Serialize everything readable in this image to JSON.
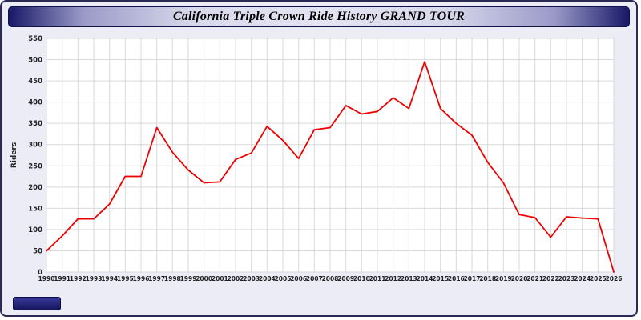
{
  "header": {
    "title": "California Triple Crown Ride History GRAND TOUR"
  },
  "chart_data": {
    "type": "line",
    "title": "California Triple Crown Ride History GRAND TOUR",
    "xlabel": "",
    "ylabel": "Riders",
    "ylim": [
      0,
      550
    ],
    "y_tick_step": 50,
    "grid": true,
    "legend_position": "none",
    "line_color": "#ee0000",
    "categories": [
      1990,
      1991,
      1992,
      1993,
      1994,
      1995,
      1996,
      1997,
      1998,
      1999,
      2000,
      2001,
      2002,
      2003,
      2004,
      2005,
      2006,
      2007,
      2008,
      2009,
      2010,
      2011,
      2012,
      2013,
      2014,
      2015,
      2016,
      2017,
      2018,
      2019,
      2020,
      2021,
      2022,
      2023,
      2024,
      2025,
      2026
    ],
    "series": [
      {
        "name": "Riders",
        "values": [
          50,
          85,
          125,
          125,
          160,
          225,
          225,
          340,
          282,
          240,
          210,
          212,
          265,
          280,
          343,
          310,
          267,
          335,
          340,
          392,
          372,
          378,
          410,
          385,
          495,
          385,
          350,
          322,
          258,
          210,
          135,
          128,
          82,
          130,
          127,
          125,
          0
        ]
      }
    ]
  },
  "colors": {
    "plot_background": "#ffffff",
    "grid": "#d9d9d9",
    "axis_text": "#222222",
    "frame_background": "#ececf7",
    "titlebar_navy": "#181868"
  }
}
